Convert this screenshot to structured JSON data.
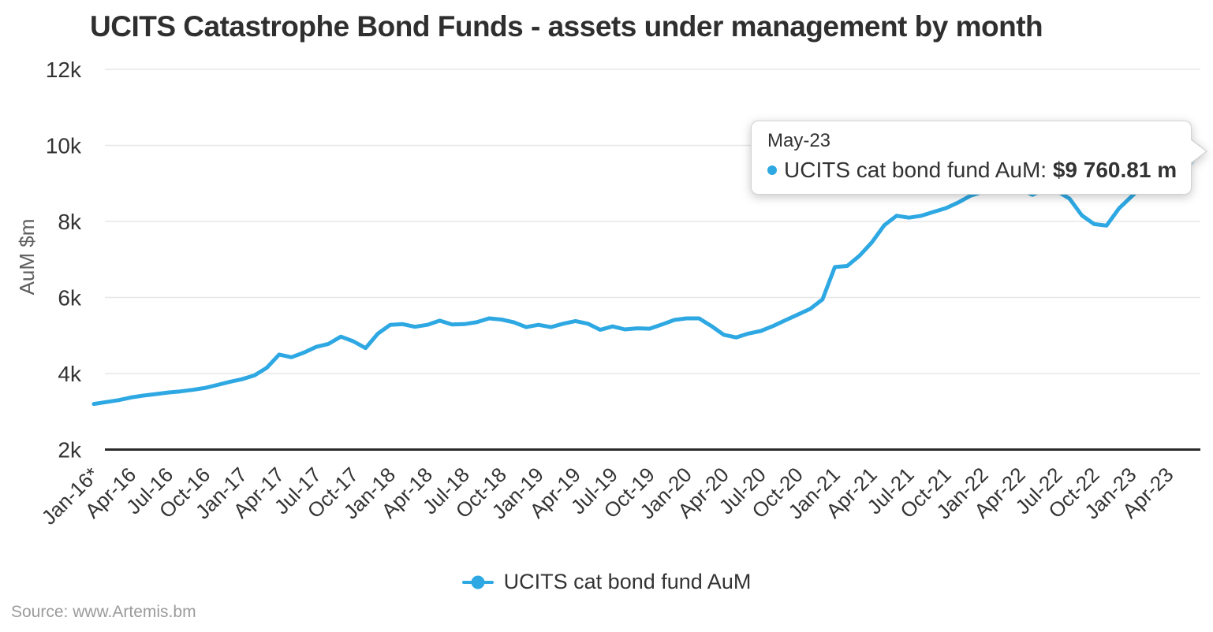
{
  "header": {
    "title": "UCITS Catastrophe Bond Funds - assets under management by month"
  },
  "legend": {
    "label": "UCITS cat bond fund AuM"
  },
  "tooltip": {
    "title": "May-23",
    "series_label": "UCITS cat bond fund AuM:",
    "value": "$9 760.81 m"
  },
  "source": {
    "text": "Source: www.Artemis.bm"
  },
  "colors": {
    "line": "#2ea8e2",
    "halo": "#c7e5f7",
    "grid": "#e7e7e7",
    "axis": "#2b2b2b",
    "tick": "#333333",
    "title": "#2f2f2f",
    "ylabel": "#606060",
    "source": "#9b9b9b"
  },
  "chart_data": {
    "type": "line",
    "title": "UCITS Catastrophe Bond Funds - assets under management by month",
    "xlabel": "",
    "ylabel": "AuM $m",
    "ylim": [
      2000,
      12000
    ],
    "grid": true,
    "legend_position": "bottom",
    "ytick_labels": [
      "2k",
      "4k",
      "6k",
      "8k",
      "10k",
      "12k"
    ],
    "ytick_values": [
      2000,
      4000,
      6000,
      8000,
      10000,
      12000
    ],
    "xtick_every": 3,
    "xtick_labels": [
      "Jan-16*",
      "Apr-16",
      "Jul-16",
      "Oct-16",
      "Jan-17",
      "Apr-17",
      "Jul-17",
      "Oct-17",
      "Jan-18",
      "Apr-18",
      "Jul-18",
      "Oct-18",
      "Jan-19",
      "Apr-19",
      "Jul-19",
      "Oct-19",
      "Jan-20",
      "Apr-20",
      "Jul-20",
      "Oct-20",
      "Jan-21",
      "Apr-21",
      "Jul-21",
      "Oct-21",
      "Jan-22",
      "Apr-22",
      "Jul-22",
      "Oct-22",
      "Jan-23",
      "Apr-23"
    ],
    "series": [
      {
        "name": "UCITS cat bond fund AuM",
        "months": [
          "Jan-16",
          "Feb-16",
          "Mar-16",
          "Apr-16",
          "May-16",
          "Jun-16",
          "Jul-16",
          "Aug-16",
          "Sep-16",
          "Oct-16",
          "Nov-16",
          "Dec-16",
          "Jan-17",
          "Feb-17",
          "Mar-17",
          "Apr-17",
          "May-17",
          "Jun-17",
          "Jul-17",
          "Aug-17",
          "Sep-17",
          "Oct-17",
          "Nov-17",
          "Dec-17",
          "Jan-18",
          "Feb-18",
          "Mar-18",
          "Apr-18",
          "May-18",
          "Jun-18",
          "Jul-18",
          "Aug-18",
          "Sep-18",
          "Oct-18",
          "Nov-18",
          "Dec-18",
          "Jan-19",
          "Feb-19",
          "Mar-19",
          "Apr-19",
          "May-19",
          "Jun-19",
          "Jul-19",
          "Aug-19",
          "Sep-19",
          "Oct-19",
          "Nov-19",
          "Dec-19",
          "Jan-20",
          "Feb-20",
          "Mar-20",
          "Apr-20",
          "May-20",
          "Jun-20",
          "Jul-20",
          "Aug-20",
          "Sep-20",
          "Oct-20",
          "Nov-20",
          "Dec-20",
          "Jan-21",
          "Feb-21",
          "Mar-21",
          "Apr-21",
          "May-21",
          "Jun-21",
          "Jul-21",
          "Aug-21",
          "Sep-21",
          "Oct-21",
          "Nov-21",
          "Dec-21",
          "Jan-22",
          "Feb-22",
          "Mar-22",
          "Apr-22",
          "May-22",
          "Jun-22",
          "Jul-22",
          "Aug-22",
          "Sep-22",
          "Oct-22",
          "Nov-22",
          "Dec-22",
          "Jan-23",
          "Feb-23",
          "Mar-23",
          "Apr-23",
          "May-23"
        ],
        "values": [
          3200,
          3250,
          3300,
          3370,
          3420,
          3460,
          3500,
          3530,
          3570,
          3620,
          3700,
          3780,
          3850,
          3950,
          4150,
          4500,
          4430,
          4550,
          4700,
          4780,
          4970,
          4850,
          4670,
          5050,
          5280,
          5300,
          5230,
          5280,
          5390,
          5290,
          5300,
          5350,
          5450,
          5420,
          5350,
          5220,
          5280,
          5220,
          5310,
          5380,
          5310,
          5150,
          5240,
          5160,
          5190,
          5180,
          5290,
          5410,
          5450,
          5450,
          5250,
          5020,
          4950,
          5050,
          5120,
          5250,
          5400,
          5550,
          5700,
          5950,
          6800,
          6830,
          7100,
          7450,
          7900,
          8150,
          8100,
          8150,
          8250,
          8350,
          8500,
          8680,
          8780,
          8800,
          8820,
          8850,
          8700,
          8850,
          8800,
          8600,
          8160,
          7930,
          7890,
          8340,
          8650,
          8950,
          9150,
          9380,
          9760.81
        ]
      }
    ],
    "annotation": {
      "month": "May-23",
      "series": "UCITS cat bond fund AuM",
      "value": 9760.81,
      "value_text": "$9 760.81 m"
    }
  }
}
